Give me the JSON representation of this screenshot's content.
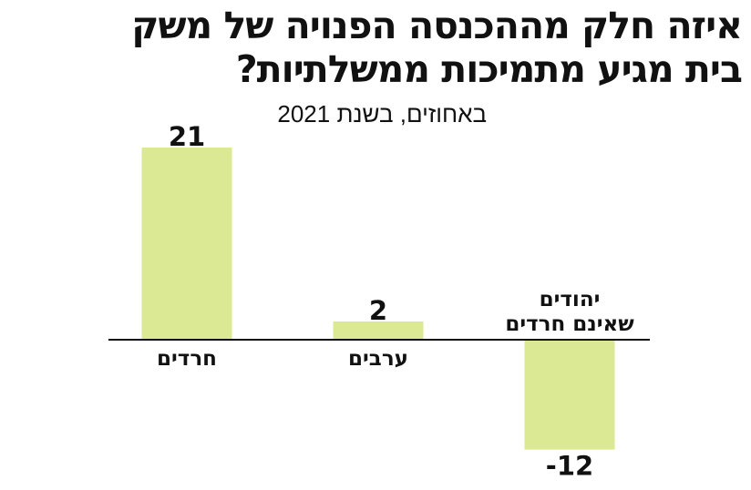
{
  "chart_data": {
    "type": "bar",
    "title_lines": [
      "איזה חלק מההכנסה הפנויה של משק",
      "בית מגיע מתמיכות ממשלתיות?"
    ],
    "subtitle": "באחוזים, בשנת 2021",
    "categories": [
      [
        "חרדים"
      ],
      [
        "ערבים"
      ],
      [
        "יהודים",
        "שאינם חרדים"
      ]
    ],
    "values": [
      21,
      2,
      -12
    ],
    "value_labels": [
      "21",
      "2",
      "-12"
    ],
    "bar_color": "#dbe894",
    "axis_color": "#111111",
    "grid": false,
    "ylim": [
      -12,
      21
    ]
  }
}
